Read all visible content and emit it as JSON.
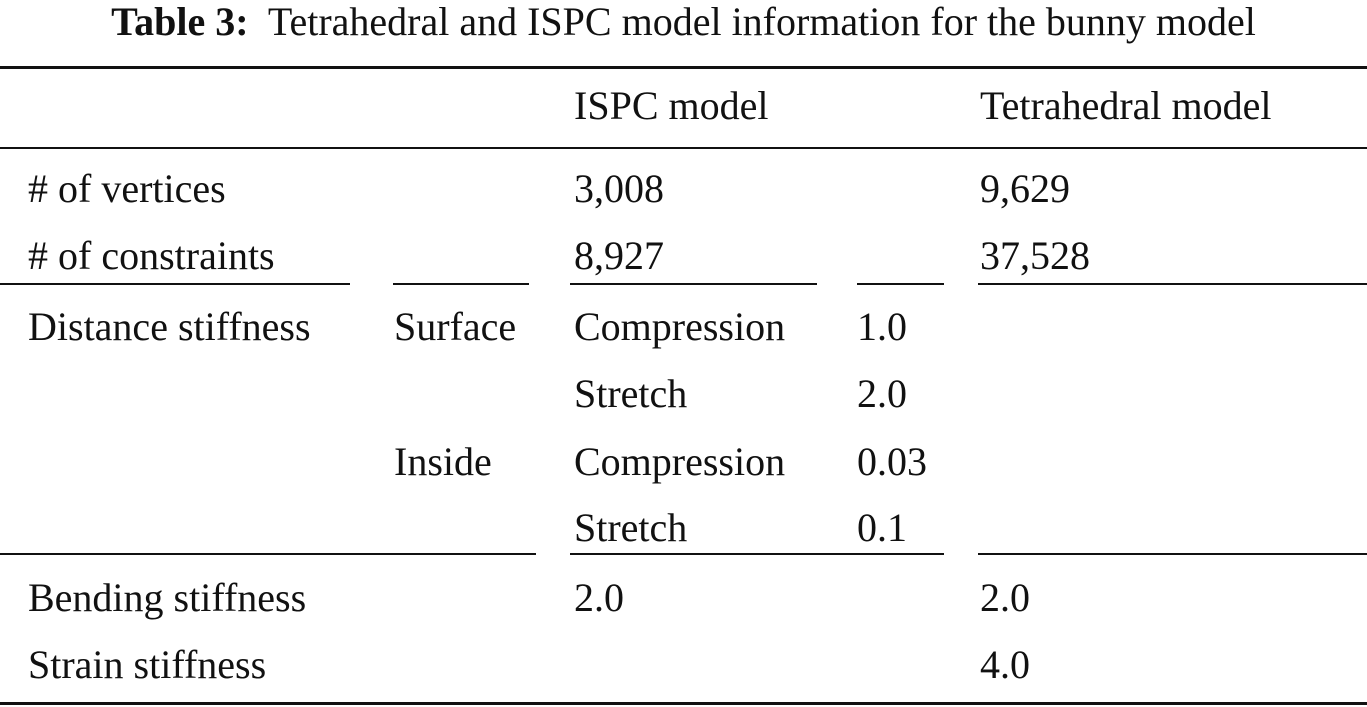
{
  "caption": {
    "label": "Table 3:",
    "text": "Tetrahedral and ISPC model information for the bunny model"
  },
  "table": {
    "headers": {
      "ispc": "ISPC model",
      "tetra": "Tetrahedral model"
    },
    "vertices": {
      "label": "# of vertices",
      "ispc": "3,008",
      "tetra": "9,629"
    },
    "constraints": {
      "label": "# of constraints",
      "ispc": "8,927",
      "tetra": "37,528"
    },
    "distance": {
      "label": "Distance stiffness",
      "surface": "Surface",
      "inside": "Inside",
      "surface_compression_label": "Compression",
      "surface_compression": "1.0",
      "surface_stretch_label": "Stretch",
      "surface_stretch": "2.0",
      "inside_compression_label": "Compression",
      "inside_compression": "0.03",
      "inside_stretch_label": "Stretch",
      "inside_stretch": "0.1"
    },
    "bending": {
      "label": "Bending stiffness",
      "ispc": "2.0",
      "tetra": "2.0"
    },
    "strain": {
      "label": "Strain stiffness",
      "tetra": "4.0"
    }
  }
}
